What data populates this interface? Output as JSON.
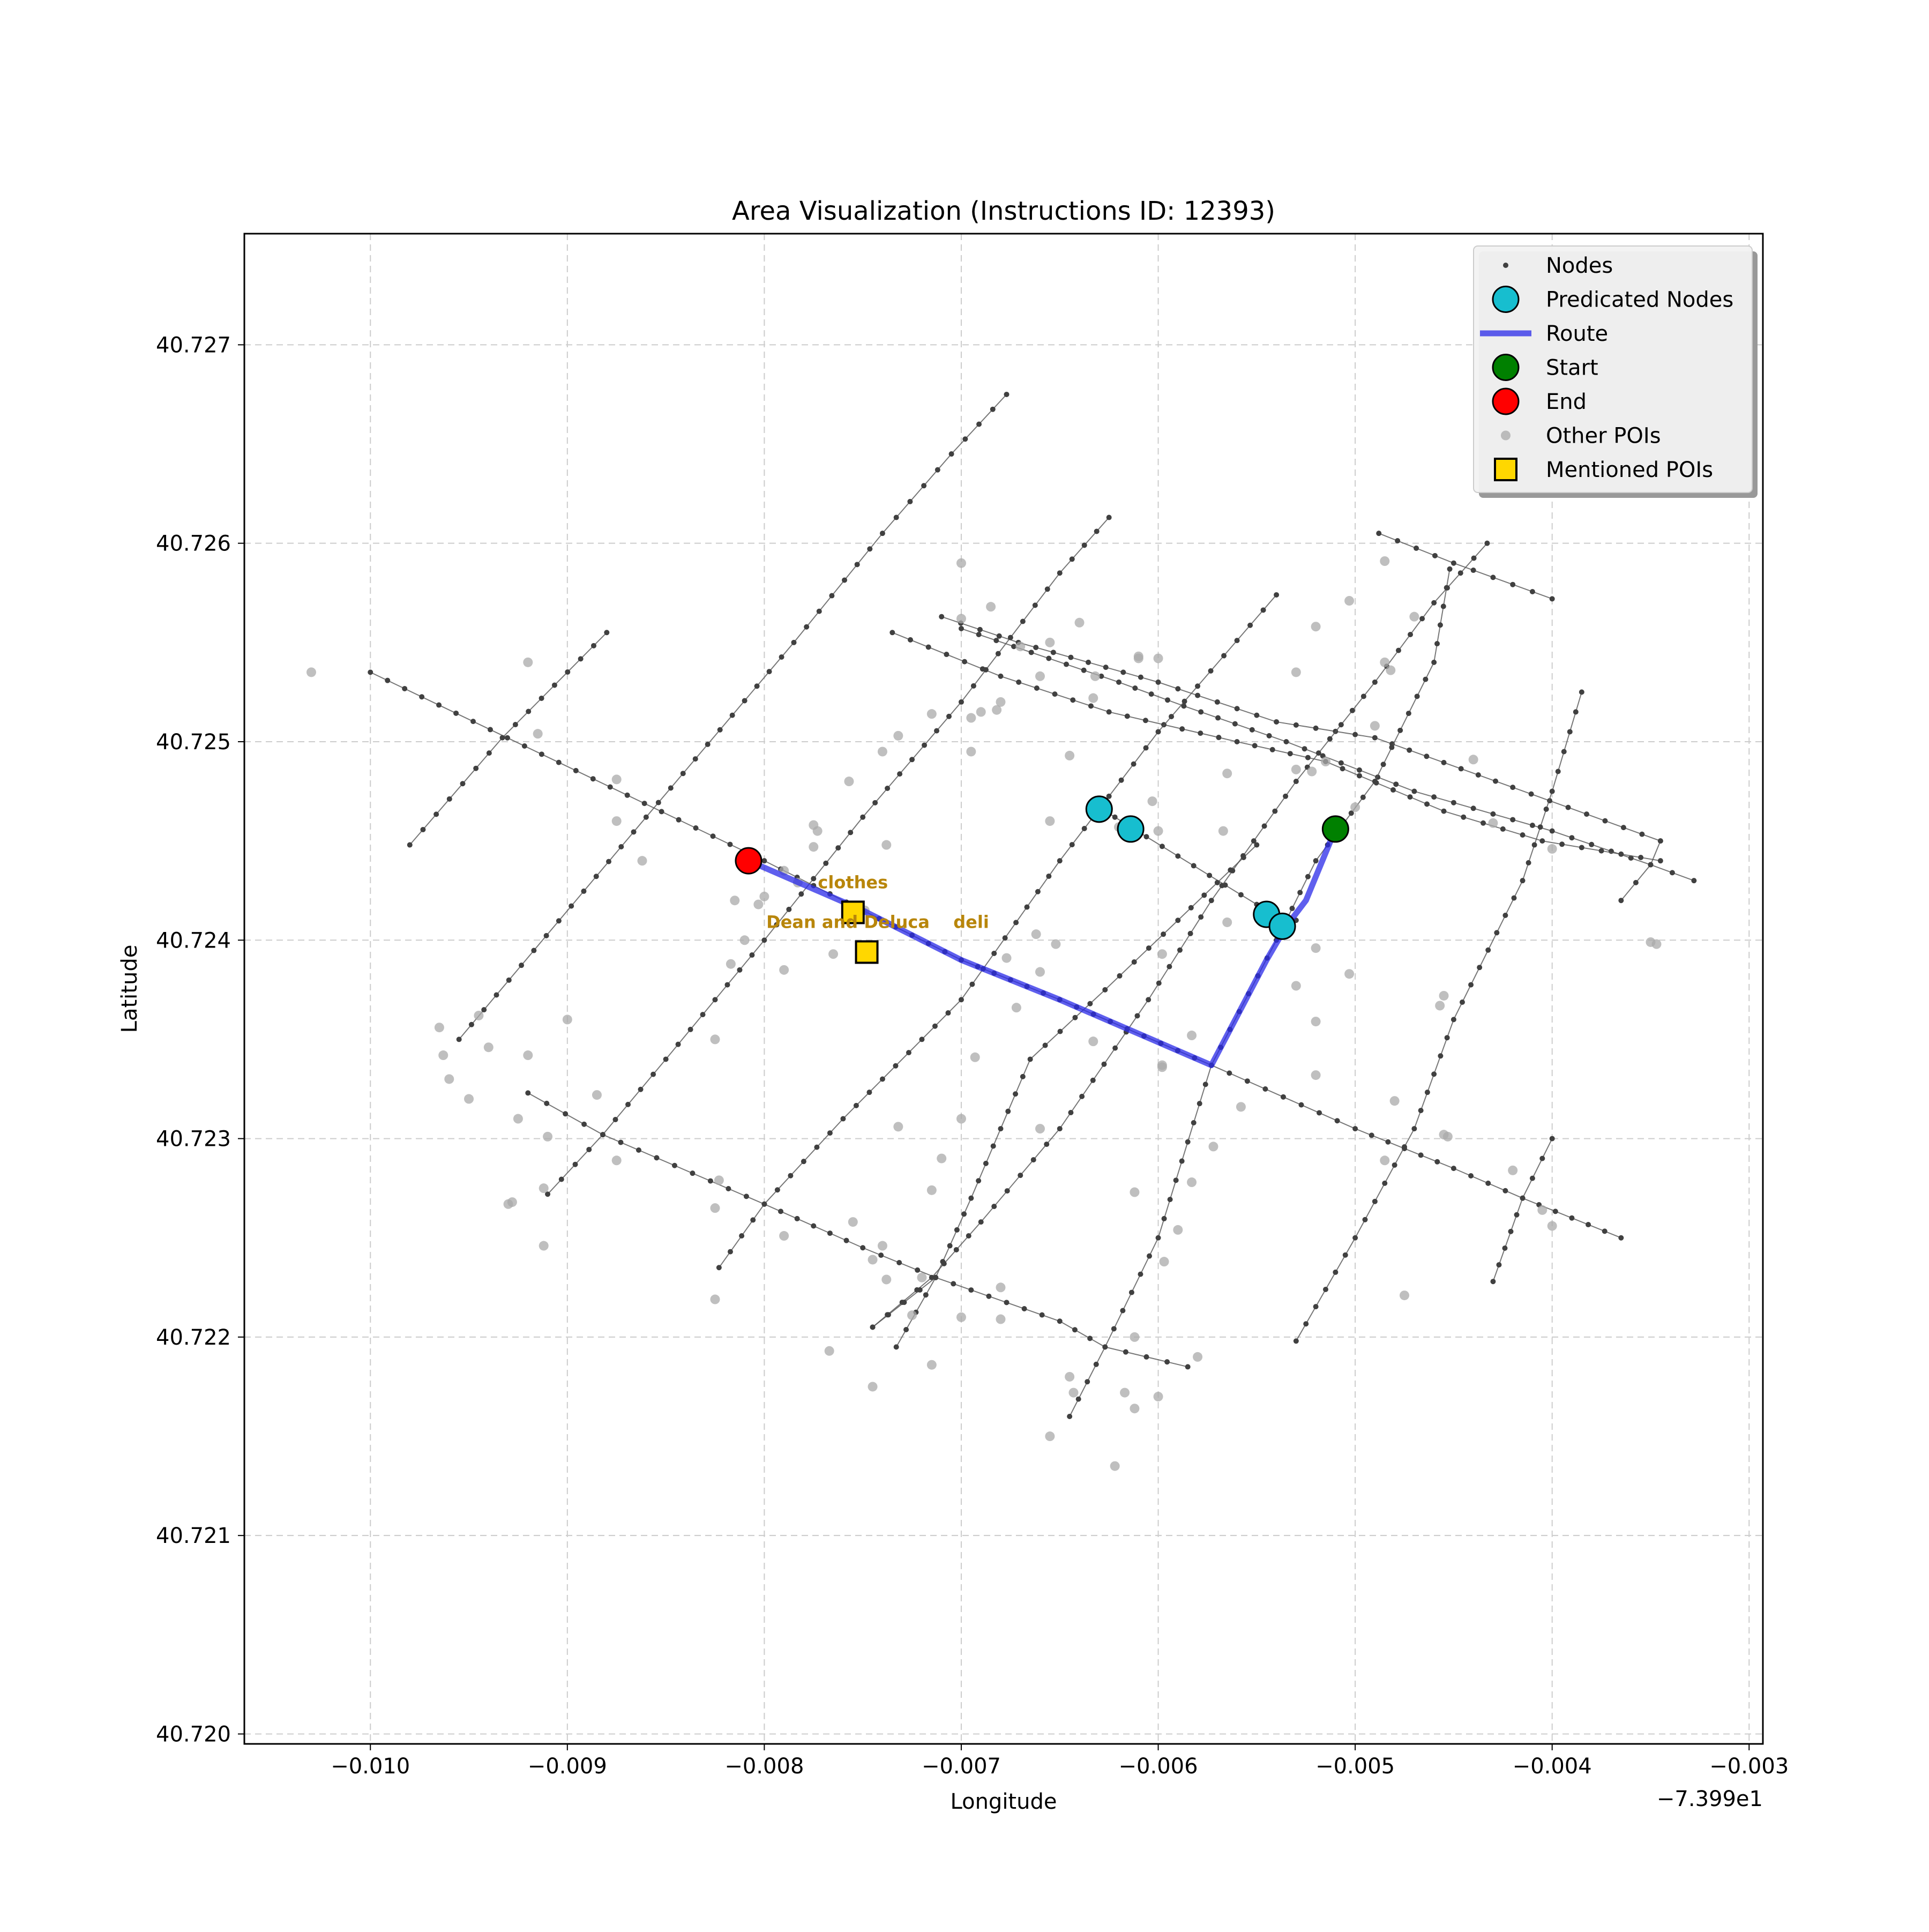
{
  "chart_data": {
    "type": "scatter",
    "title": "Area Visualization (Instructions ID: 12393)",
    "xlabel": "Longitude",
    "ylabel": "Latitude",
    "x_offset_label": "−7.399e1",
    "xlim": [
      -0.01064,
      -0.00293
    ],
    "ylim": [
      40.71995,
      40.72756
    ],
    "x_ticks": [
      -0.01,
      -0.009,
      -0.008,
      -0.007,
      -0.006,
      -0.005,
      -0.004,
      -0.003
    ],
    "x_tick_labels": [
      "−0.010",
      "−0.009",
      "−0.008",
      "−0.007",
      "−0.006",
      "−0.005",
      "−0.004",
      "−0.003"
    ],
    "y_ticks": [
      40.72,
      40.721,
      40.722,
      40.723,
      40.724,
      40.725,
      40.726,
      40.727
    ],
    "y_tick_labels": [
      "40.720",
      "40.721",
      "40.722",
      "40.723",
      "40.724",
      "40.725",
      "40.726",
      "40.727"
    ],
    "grid": true,
    "legend_position": "top-right",
    "legend": [
      "Nodes",
      "Predicated Nodes",
      "Route",
      "Start",
      "End",
      "Other POIs",
      "Mentioned POIs"
    ],
    "colors": {
      "nodes": "#404040",
      "streets": "#555555",
      "predicted": "#17becf",
      "route": "#2a2ae8",
      "start": "#008000",
      "end": "#ff0000",
      "other_poi": "#a9a9a9",
      "mentioned_poi": "#ffd700",
      "poi_label": "#b8860b",
      "grid": "#cccccc"
    },
    "streets": [
      [
        [
          -0.01,
          40.72535
        ],
        [
          -0.008,
          40.7244
        ],
        [
          -0.0075,
          40.72415
        ],
        [
          -0.007,
          40.7239
        ],
        [
          -0.0065,
          40.7237
        ],
        [
          -0.00573,
          40.72337
        ],
        [
          -0.005,
          40.72305
        ],
        [
          -0.0045,
          40.72285
        ],
        [
          -0.00415,
          40.7227
        ],
        [
          -0.00365,
          40.7225
        ]
      ],
      [
        [
          -0.0092,
          40.72323
        ],
        [
          -0.00882,
          40.72302
        ],
        [
          -0.008,
          40.72267
        ],
        [
          -0.0075,
          40.72245
        ],
        [
          -0.00713,
          40.7223
        ],
        [
          -0.0065,
          40.72208
        ],
        [
          -0.00627,
          40.72195
        ],
        [
          -0.00585,
          40.72185
        ]
      ],
      [
        [
          -0.0071,
          40.72563
        ],
        [
          -0.00671,
          40.7255
        ],
        [
          -0.006,
          40.7253
        ],
        [
          -0.0054,
          40.7251
        ],
        [
          -0.0049,
          40.72502
        ],
        [
          -0.0042,
          40.72477
        ],
        [
          -0.00345,
          40.7245
        ]
      ],
      [
        [
          -0.007,
          40.72557
        ],
        [
          -0.0062,
          40.7253
        ],
        [
          -0.00587,
          40.72518
        ],
        [
          -0.00535,
          40.725
        ],
        [
          -0.0047,
          40.72475
        ],
        [
          -0.004,
          40.72455
        ],
        [
          -0.0035,
          40.72438
        ],
        [
          -0.00328,
          40.7243
        ]
      ],
      [
        [
          -0.00735,
          40.72555
        ],
        [
          -0.0068,
          40.72533
        ],
        [
          -0.00625,
          40.72515
        ],
        [
          -0.0056,
          40.725
        ],
        [
          -0.00515,
          40.7249
        ],
        [
          -0.00455,
          40.72465
        ],
        [
          -0.00405,
          40.7245
        ],
        [
          -0.00345,
          40.7244
        ]
      ],
      [
        [
          -0.00488,
          40.72605
        ],
        [
          -0.0045,
          40.7259
        ],
        [
          -0.004,
          40.72572
        ]
      ],
      [
        [
          -0.0063,
          40.72467
        ],
        [
          -0.00614,
          40.72457
        ],
        [
          -0.0055,
          40.72418
        ],
        [
          -0.0053,
          40.7241
        ]
      ],
      [
        [
          -0.0098,
          40.72448
        ],
        [
          -0.00933,
          40.72502
        ],
        [
          -0.0088,
          40.72555
        ]
      ],
      [
        [
          -0.00955,
          40.7235
        ],
        [
          -0.0086,
          40.72462
        ],
        [
          -0.00785,
          40.7255
        ],
        [
          -0.0074,
          40.72605
        ],
        [
          -0.00705,
          40.72645
        ],
        [
          -0.00677,
          40.72675
        ]
      ],
      [
        [
          -0.0091,
          40.72272
        ],
        [
          -0.00882,
          40.72302
        ],
        [
          -0.0085,
          40.7234
        ],
        [
          -0.008,
          40.724
        ],
        [
          -0.0075,
          40.72462
        ],
        [
          -0.007,
          40.7252
        ],
        [
          -0.0065,
          40.72585
        ],
        [
          -0.00625,
          40.72613
        ]
      ],
      [
        [
          -0.00823,
          40.72235
        ],
        [
          -0.008,
          40.72267
        ],
        [
          -0.0076,
          40.7231
        ],
        [
          -0.007,
          40.7237
        ],
        [
          -0.0065,
          40.7244
        ],
        [
          -0.006,
          40.72505
        ],
        [
          -0.0054,
          40.72574
        ]
      ],
      [
        [
          -0.00745,
          40.72205
        ],
        [
          -0.00715,
          40.7223
        ],
        [
          -0.0069,
          40.72258
        ],
        [
          -0.0065,
          40.72305
        ],
        [
          -0.00605,
          40.7237
        ],
        [
          -0.00573,
          40.7242
        ],
        [
          -0.0053,
          40.7248
        ],
        [
          -0.0049,
          40.7253
        ],
        [
          -0.0046,
          40.7257
        ],
        [
          -0.00433,
          40.726
        ]
      ],
      [
        [
          -0.00745,
          40.72205
        ],
        [
          -0.00713,
          40.7223
        ]
      ],
      [
        [
          -0.00733,
          40.72195
        ],
        [
          -0.00713,
          40.7223
        ],
        [
          -0.00695,
          40.7227
        ],
        [
          -0.00665,
          40.7234
        ],
        [
          -0.00627,
          40.72375
        ],
        [
          -0.0059,
          40.7241
        ],
        [
          -0.0055,
          40.72448
        ]
      ],
      [
        [
          -0.00645,
          40.7216
        ],
        [
          -0.00627,
          40.72195
        ],
        [
          -0.006,
          40.7225
        ],
        [
          -0.00573,
          40.72337
        ],
        [
          -0.0054,
          40.724
        ],
        [
          -0.0052,
          40.7244
        ],
        [
          -0.0049,
          40.7248
        ],
        [
          -0.0046,
          40.7254
        ],
        [
          -0.00452,
          40.72587
        ]
      ],
      [
        [
          -0.0053,
          40.72198
        ],
        [
          -0.005,
          40.7225
        ],
        [
          -0.0047,
          40.72305
        ],
        [
          -0.0045,
          40.7236
        ],
        [
          -0.00415,
          40.7243
        ],
        [
          -0.004,
          40.72475
        ],
        [
          -0.00385,
          40.72525
        ]
      ],
      [
        [
          -0.0043,
          40.72228
        ],
        [
          -0.00415,
          40.7227
        ],
        [
          -0.004,
          40.723
        ]
      ],
      [
        [
          -0.00365,
          40.7242
        ],
        [
          -0.0035,
          40.72438
        ],
        [
          -0.00345,
          40.7245
        ]
      ]
    ],
    "other_pois": [
      [
        -0.0103,
        40.72535
      ],
      [
        -0.0092,
        40.7254
      ],
      [
        -0.00915,
        40.72504
      ],
      [
        -0.00875,
        40.72481
      ],
      [
        -0.00875,
        40.7246
      ],
      [
        -0.00862,
        40.7244
      ],
      [
        -0.00817,
        40.72388
      ],
      [
        -0.008,
        40.72422
      ],
      [
        -0.00803,
        40.72418
      ],
      [
        -0.0079,
        40.72435
      ],
      [
        -0.00775,
        40.72447
      ],
      [
        -0.00775,
        40.72458
      ],
      [
        -0.00773,
        40.72455
      ],
      [
        -0.00757,
        40.7248
      ],
      [
        -0.00749,
        40.72415
      ],
      [
        -0.00755,
        40.72415
      ],
      [
        -0.0074,
        40.72495
      ],
      [
        -0.00738,
        40.72448
      ],
      [
        -0.00732,
        40.72503
      ],
      [
        -0.00715,
        40.72514
      ],
      [
        -0.00765,
        40.72393
      ],
      [
        -0.00783,
        40.72429
      ],
      [
        -0.0079,
        40.72385
      ],
      [
        -0.0081,
        40.724
      ],
      [
        -0.00815,
        40.7242
      ],
      [
        -0.00825,
        40.7235
      ],
      [
        -0.00885,
        40.72322
      ],
      [
        -0.009,
        40.7236
      ],
      [
        -0.0092,
        40.72342
      ],
      [
        -0.0094,
        40.72346
      ],
      [
        -0.00945,
        40.72362
      ],
      [
        -0.0095,
        40.7232
      ],
      [
        -0.0096,
        40.7233
      ],
      [
        -0.00963,
        40.72342
      ],
      [
        -0.00965,
        40.72356
      ],
      [
        -0.00925,
        40.7231
      ],
      [
        -0.0091,
        40.72301
      ],
      [
        -0.00875,
        40.72289
      ],
      [
        -0.00912,
        40.72275
      ],
      [
        -0.0093,
        40.72267
      ],
      [
        -0.00928,
        40.72268
      ],
      [
        -0.00912,
        40.72246
      ],
      [
        -0.00825,
        40.72265
      ],
      [
        -0.00823,
        40.72279
      ],
      [
        -0.00825,
        40.72219
      ],
      [
        -0.0079,
        40.72251
      ],
      [
        -0.00767,
        40.72193
      ],
      [
        -0.00755,
        40.72258
      ],
      [
        -0.00745,
        40.72239
      ],
      [
        -0.0074,
        40.72246
      ],
      [
        -0.00738,
        40.72229
      ],
      [
        -0.00745,
        40.72175
      ],
      [
        -0.00732,
        40.72306
      ],
      [
        -0.00725,
        40.72211
      ],
      [
        -0.0072,
        40.7223
      ],
      [
        -0.00715,
        40.72274
      ],
      [
        -0.00715,
        40.72186
      ],
      [
        -0.0071,
        40.7229
      ],
      [
        -0.007,
        40.7221
      ],
      [
        -0.007,
        40.7231
      ],
      [
        -0.00693,
        40.72341
      ],
      [
        -0.0068,
        40.72225
      ],
      [
        -0.0068,
        40.72209
      ],
      [
        -0.00677,
        40.72391
      ],
      [
        -0.00672,
        40.72366
      ],
      [
        -0.0066,
        40.72305
      ],
      [
        -0.00662,
        40.72403
      ],
      [
        -0.00655,
        40.7215
      ],
      [
        -0.00652,
        40.72398
      ],
      [
        -0.0066,
        40.72384
      ],
      [
        -0.00645,
        40.7218
      ],
      [
        -0.00643,
        40.72172
      ],
      [
        -0.00633,
        40.72349
      ],
      [
        -0.00622,
        40.72135
      ],
      [
        -0.00617,
        40.72172
      ],
      [
        -0.00612,
        40.722
      ],
      [
        -0.00612,
        40.72164
      ],
      [
        -0.00612,
        40.72273
      ],
      [
        -0.006,
        40.7217
      ],
      [
        -0.00598,
        40.72336
      ],
      [
        -0.00598,
        40.72337
      ],
      [
        -0.00598,
        40.72393
      ],
      [
        -0.00597,
        40.72238
      ],
      [
        -0.0059,
        40.72254
      ],
      [
        -0.00583,
        40.72278
      ],
      [
        -0.00583,
        40.72352
      ],
      [
        -0.0058,
        40.7219
      ],
      [
        -0.00572,
        40.72296
      ],
      [
        -0.00565,
        40.72409
      ],
      [
        -0.00558,
        40.72316
      ],
      [
        -0.00545,
        40.7241
      ],
      [
        -0.0053,
        40.72377
      ],
      [
        -0.0052,
        40.72396
      ],
      [
        -0.0052,
        40.72359
      ],
      [
        -0.0052,
        40.72332
      ],
      [
        -0.00503,
        40.72383
      ],
      [
        -0.00485,
        40.72289
      ],
      [
        -0.0048,
        40.72319
      ],
      [
        -0.00475,
        40.72221
      ],
      [
        -0.00457,
        40.72367
      ],
      [
        -0.00455,
        40.72372
      ],
      [
        -0.00455,
        40.72302
      ],
      [
        -0.00453,
        40.72301
      ],
      [
        -0.0042,
        40.72284
      ],
      [
        -0.00405,
        40.72264
      ],
      [
        -0.004,
        40.72256
      ],
      [
        -0.00655,
        40.7246
      ],
      [
        -0.00645,
        40.72493
      ],
      [
        -0.00632,
        40.72533
      ],
      [
        -0.00633,
        40.72522
      ],
      [
        -0.0062,
        40.72457
      ],
      [
        -0.0061,
        40.72543
      ],
      [
        -0.00603,
        40.7247
      ],
      [
        -0.006,
        40.72455
      ],
      [
        -0.00567,
        40.72455
      ],
      [
        -0.00565,
        40.72484
      ],
      [
        -0.0053,
        40.72486
      ],
      [
        -0.00522,
        40.72485
      ],
      [
        -0.00515,
        40.7249
      ],
      [
        -0.005,
        40.72467
      ],
      [
        -0.0049,
        40.72508
      ],
      [
        -0.00485,
        40.7254
      ],
      [
        -0.00482,
        40.72536
      ],
      [
        -0.0047,
        40.72563
      ],
      [
        -0.00485,
        40.72591
      ],
      [
        -0.00503,
        40.72571
      ],
      [
        -0.0053,
        40.72535
      ],
      [
        -0.0052,
        40.72558
      ],
      [
        -0.0044,
        40.72491
      ],
      [
        -0.0043,
        40.72459
      ],
      [
        -0.004,
        40.72446
      ],
      [
        -0.0035,
        40.72399
      ],
      [
        -0.00347,
        40.72398
      ],
      [
        -0.0064,
        40.7256
      ],
      [
        -0.0066,
        40.72533
      ],
      [
        -0.0069,
        40.72515
      ],
      [
        -0.00695,
        40.72495
      ],
      [
        -0.00695,
        40.72512
      ],
      [
        -0.007,
        40.72562
      ],
      [
        -0.007,
        40.7259
      ],
      [
        -0.00685,
        40.72568
      ],
      [
        -0.00655,
        40.7255
      ],
      [
        -0.0061,
        40.72542
      ],
      [
        -0.006,
        40.72542
      ],
      [
        -0.0068,
        40.7252
      ],
      [
        -0.00682,
        40.72516
      ],
      [
        -0.0067,
        40.72548
      ]
    ],
    "route": [
      [
        -0.0051,
        40.72456
      ],
      [
        -0.00525,
        40.7242
      ],
      [
        -0.00535,
        40.72407
      ],
      [
        -0.00545,
        40.7239
      ],
      [
        -0.00573,
        40.72337
      ],
      [
        -0.0065,
        40.7237
      ],
      [
        -0.007,
        40.7239
      ],
      [
        -0.0075,
        40.72415
      ],
      [
        -0.00808,
        40.7244
      ]
    ],
    "predicted_nodes": [
      [
        -0.0063,
        40.72466
      ],
      [
        -0.00614,
        40.72456
      ],
      [
        -0.00545,
        40.72413
      ],
      [
        -0.00537,
        40.72407
      ]
    ],
    "start": [
      -0.0051,
      40.72456
    ],
    "end": [
      -0.00808,
      40.7244
    ],
    "mentioned_pois": [
      {
        "name": "clothes",
        "x": -0.00755,
        "y": 40.72414
      },
      {
        "name": "Dean and Deluca",
        "x": -0.00748,
        "y": 40.72394
      },
      {
        "name": "deli",
        "x": -0.00748,
        "y": 40.72394
      }
    ]
  }
}
